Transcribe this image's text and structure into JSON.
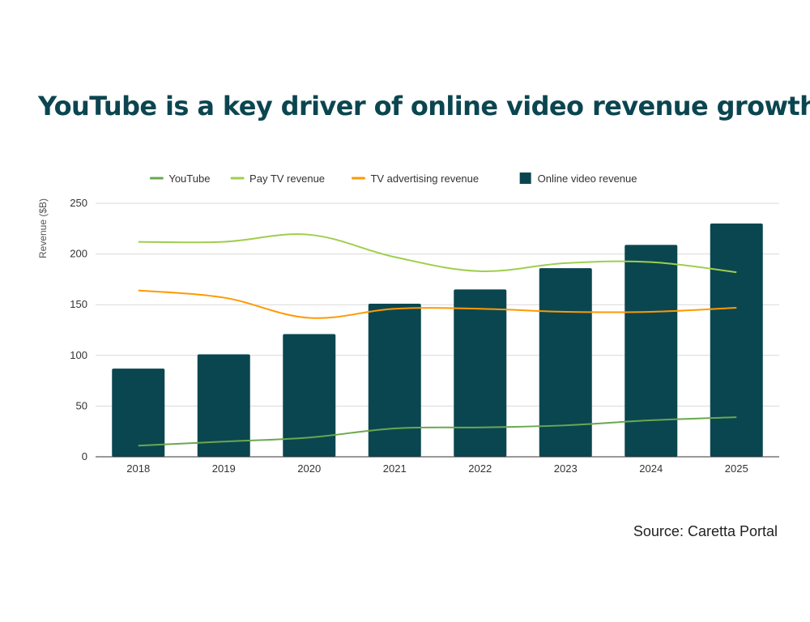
{
  "chart_data": {
    "type": "bar",
    "title": "YouTube is a key driver of online video revenue growth",
    "xlabel": "",
    "ylabel": "Revenue ($B)",
    "ylim": [
      0,
      250
    ],
    "yticks": [
      0,
      50,
      100,
      150,
      200,
      250
    ],
    "grid": true,
    "legend_position": "top-center",
    "categories": [
      "2018",
      "2019",
      "2020",
      "2021",
      "2022",
      "2023",
      "2024",
      "2025"
    ],
    "series": [
      {
        "name": "YouTube",
        "kind": "line",
        "color": "#6aa84f",
        "values": [
          11,
          15,
          19,
          28,
          29,
          31,
          36,
          39
        ]
      },
      {
        "name": "Pay TV revenue",
        "kind": "line",
        "color": "#9fce4d",
        "values": [
          212,
          212,
          219,
          197,
          183,
          191,
          192,
          182
        ]
      },
      {
        "name": "TV advertising revenue",
        "kind": "line",
        "color": "#ff9900",
        "values": [
          164,
          157,
          137,
          146,
          146,
          143,
          143,
          147
        ]
      },
      {
        "name": "Online video revenue",
        "kind": "bar",
        "color": "#0a4650",
        "values": [
          87,
          101,
          121,
          151,
          165,
          186,
          209,
          230
        ]
      }
    ]
  },
  "source": "Source: Caretta Portal"
}
